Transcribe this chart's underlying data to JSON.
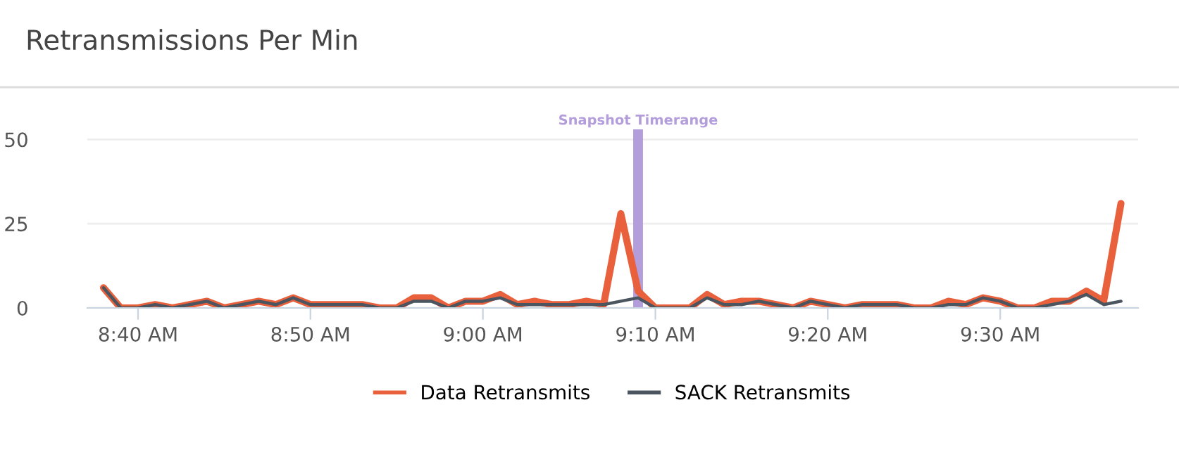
{
  "chart_data": {
    "type": "line",
    "title": "Retransmissions Per Min",
    "x": [
      8.6333,
      8.65,
      8.6667,
      8.6833,
      8.7,
      8.7167,
      8.7333,
      8.75,
      8.7667,
      8.7833,
      8.8,
      8.8167,
      8.8333,
      8.85,
      8.8667,
      8.8833,
      8.9,
      8.9167,
      8.9333,
      8.95,
      8.9667,
      8.9833,
      9,
      9.0167,
      9.0333,
      9.05,
      9.0667,
      9.0833,
      9.1,
      9.1167,
      9.1333,
      9.15,
      9.1667,
      9.1833,
      9.2,
      9.2167,
      9.2333,
      9.25,
      9.2667,
      9.2833,
      9.3,
      9.3167,
      9.3333,
      9.35,
      9.3667,
      9.3833,
      9.4,
      9.4167,
      9.4333,
      9.45,
      9.4667,
      9.4833,
      9.5,
      9.5167,
      9.5333,
      9.55,
      9.5667,
      9.5833,
      9.6,
      9.6167
    ],
    "series": [
      {
        "name": "Data Retransmits",
        "color": "#e8603c",
        "values": [
          6,
          0,
          0,
          1,
          0,
          1,
          2,
          0,
          1,
          2,
          1,
          3,
          1,
          1,
          1,
          1,
          0,
          0,
          3,
          3,
          0,
          2,
          2,
          4,
          1,
          2,
          1,
          1,
          2,
          1,
          28,
          5,
          0,
          0,
          0,
          4,
          1,
          2,
          2,
          1,
          0,
          2,
          1,
          0,
          1,
          1,
          1,
          0,
          0,
          2,
          1,
          3,
          2,
          0,
          0,
          2,
          2,
          5,
          2,
          31
        ]
      },
      {
        "name": "SACK Retransmits",
        "color": "#4a5560",
        "values": [
          6,
          0,
          0,
          1,
          0,
          1,
          2,
          0,
          1,
          2,
          1,
          3,
          1,
          1,
          1,
          1,
          0,
          0,
          2,
          2,
          0,
          2,
          2,
          3,
          1,
          1,
          1,
          1,
          1,
          1,
          2,
          3,
          0,
          0,
          0,
          3,
          1,
          1,
          2,
          1,
          0,
          2,
          1,
          0,
          1,
          1,
          1,
          0,
          0,
          1,
          1,
          3,
          2,
          0,
          0,
          1,
          2,
          4,
          1,
          2
        ]
      }
    ],
    "xlim": [
      8.6177,
      9.6333
    ],
    "xticks": [
      {
        "value": 8.6667,
        "label": "8:40 AM"
      },
      {
        "value": 8.8333,
        "label": "8:50 AM"
      },
      {
        "value": 9,
        "label": "9:00 AM"
      },
      {
        "value": 9.1667,
        "label": "9:10 AM"
      },
      {
        "value": 9.3333,
        "label": "9:20 AM"
      },
      {
        "value": 9.5,
        "label": "9:30 AM"
      }
    ],
    "ylim": [
      0,
      53
    ],
    "yticks": [
      0,
      25,
      50
    ],
    "ref_lines": [
      {
        "axis": "x",
        "value": 9.15,
        "label": "Snapshot Timerange",
        "color": "#b39ddb"
      }
    ],
    "grid": "y",
    "legend": "bottom",
    "marker": "none",
    "line_style": "solid"
  }
}
